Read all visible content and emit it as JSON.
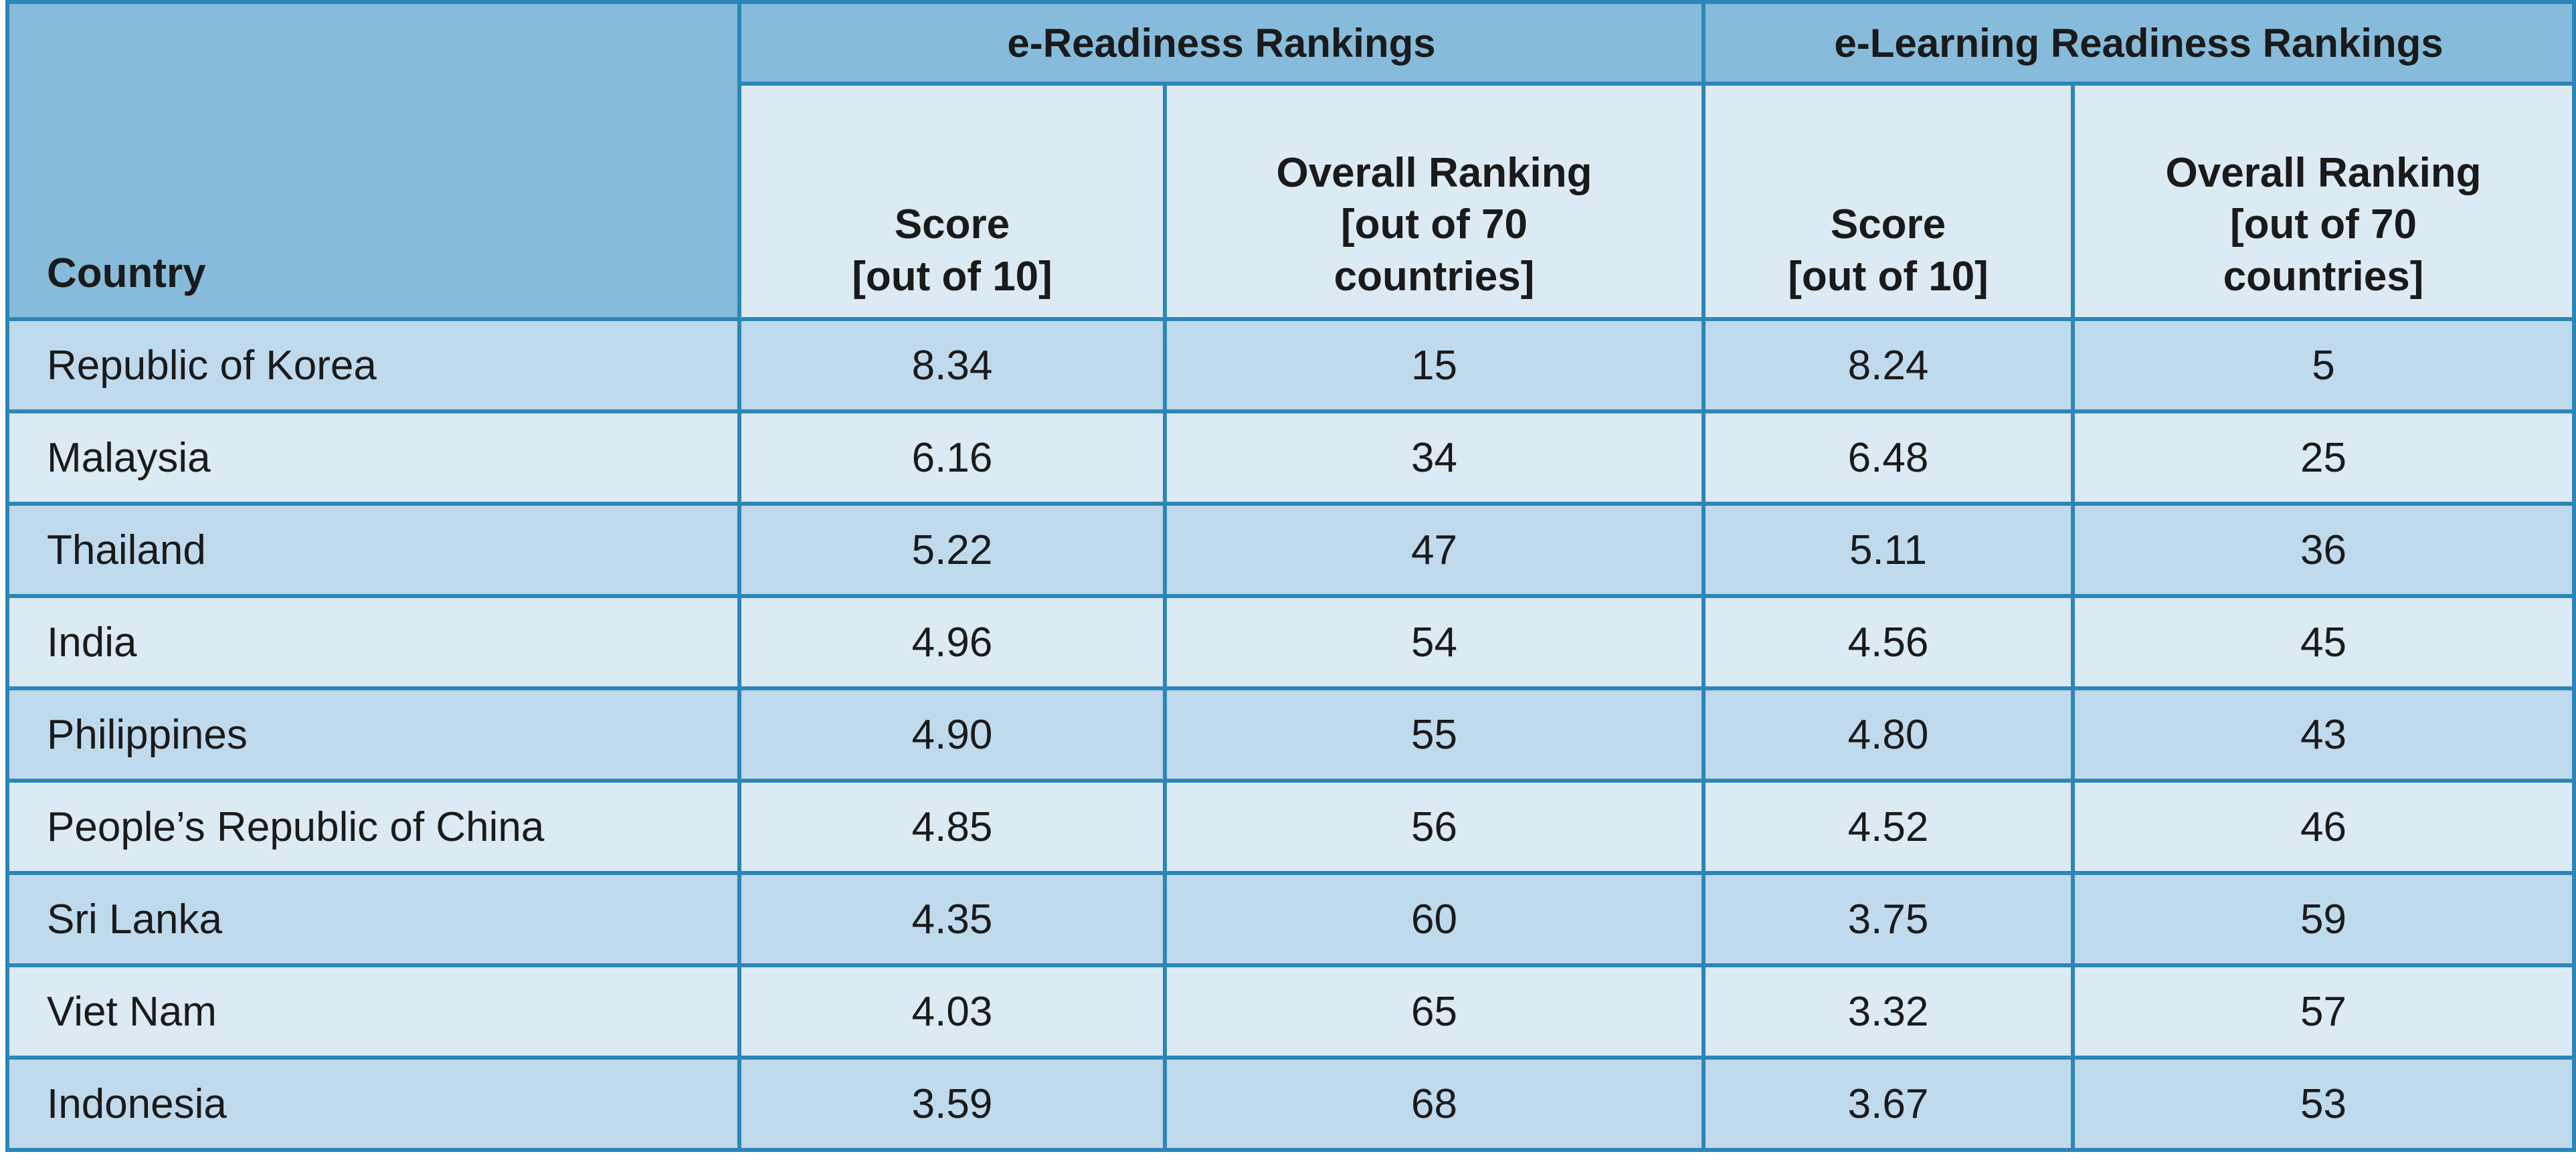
{
  "table": {
    "country_header": "Country",
    "groups": [
      {
        "label": "e-Readiness Rankings"
      },
      {
        "label": "e-Learning Readiness Rankings"
      }
    ],
    "subheaders": {
      "e_readiness_score": [
        "Score",
        "[out of 10]"
      ],
      "e_readiness_rank": [
        "Overall Ranking",
        "[out of 70",
        "countries]"
      ],
      "e_learning_score": [
        "Score",
        "[out of 10]"
      ],
      "e_learning_rank": [
        "Overall Ranking",
        "[out of 70",
        "countries]"
      ]
    },
    "rows": [
      {
        "country": "Republic of Korea",
        "er_score": "8.34",
        "er_rank": "15",
        "el_score": "8.24",
        "el_rank": "5"
      },
      {
        "country": "Malaysia",
        "er_score": "6.16",
        "er_rank": "34",
        "el_score": "6.48",
        "el_rank": "25"
      },
      {
        "country": "Thailand",
        "er_score": "5.22",
        "er_rank": "47",
        "el_score": "5.11",
        "el_rank": "36"
      },
      {
        "country": "India",
        "er_score": "4.96",
        "er_rank": "54",
        "el_score": "4.56",
        "el_rank": "45"
      },
      {
        "country": "Philippines",
        "er_score": "4.90",
        "er_rank": "55",
        "el_score": "4.80",
        "el_rank": "43"
      },
      {
        "country": "People’s Republic of China",
        "er_score": "4.85",
        "er_rank": "56",
        "el_score": "4.52",
        "el_rank": "46"
      },
      {
        "country": "Sri Lanka",
        "er_score": "4.35",
        "er_rank": "60",
        "el_score": "3.75",
        "el_rank": "59"
      },
      {
        "country": "Viet Nam",
        "er_score": "4.03",
        "er_rank": "65",
        "el_score": "3.32",
        "el_rank": "57"
      },
      {
        "country": "Indonesia",
        "er_score": "3.59",
        "er_rank": "68",
        "el_score": "3.67",
        "el_rank": "53"
      }
    ]
  },
  "colors": {
    "header_dark": "#86bbdb",
    "header_light": "#dceaf3",
    "row_dark": "#bfdaec",
    "row_light": "#dceaf3",
    "border": "#2c86b8"
  }
}
